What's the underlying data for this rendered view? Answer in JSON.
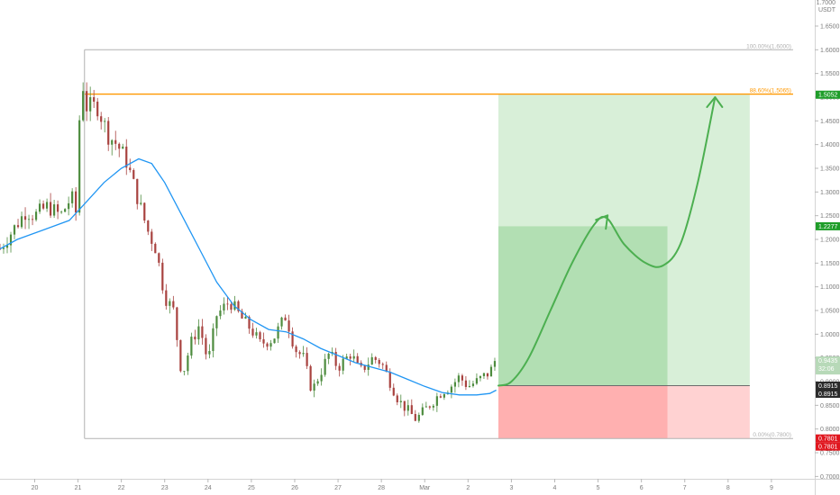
{
  "chart_data": {
    "type": "candlestick",
    "title": "",
    "xlabel": "",
    "ylabel": "",
    "currency_label": [
      "1.7000",
      "USDT"
    ],
    "x_ticks": [
      {
        "label": "20",
        "day": 20
      },
      {
        "label": "21",
        "day": 21
      },
      {
        "label": "22",
        "day": 22
      },
      {
        "label": "23",
        "day": 23
      },
      {
        "label": "24",
        "day": 24
      },
      {
        "label": "25",
        "day": 25
      },
      {
        "label": "26",
        "day": 26
      },
      {
        "label": "27",
        "day": 27
      },
      {
        "label": "28",
        "day": 28
      },
      {
        "label": "Mar",
        "day": 29
      },
      {
        "label": "2",
        "day": 30
      },
      {
        "label": "3",
        "day": 31
      },
      {
        "label": "4",
        "day": 32
      },
      {
        "label": "5",
        "day": 33
      },
      {
        "label": "6",
        "day": 34
      },
      {
        "label": "7",
        "day": 35
      },
      {
        "label": "8",
        "day": 36
      },
      {
        "label": "9",
        "day": 37
      }
    ],
    "y_ticks": [
      "1.6500",
      "1.6000",
      "1.5500",
      "1.5000",
      "1.4500",
      "1.4000",
      "1.3500",
      "1.3000",
      "1.2500",
      "1.2000",
      "1.1500",
      "1.1000",
      "1.0500",
      "1.0000",
      "0.9500",
      "0.9000",
      "0.8500",
      "0.8000",
      "0.7500",
      "0.7000"
    ],
    "ylim": [
      0.695,
      1.705
    ],
    "xlim": [
      19.2,
      38.0
    ],
    "price_points": [
      [
        19.2,
        1.18
      ],
      [
        19.5,
        1.22
      ],
      [
        19.8,
        1.26
      ],
      [
        20.0,
        1.25
      ],
      [
        20.3,
        1.27
      ],
      [
        20.6,
        1.25
      ],
      [
        20.85,
        1.29
      ],
      [
        21.0,
        1.24
      ],
      [
        21.05,
        1.56
      ],
      [
        21.2,
        1.48
      ],
      [
        21.45,
        1.48
      ],
      [
        21.7,
        1.42
      ],
      [
        21.9,
        1.4
      ],
      [
        22.1,
        1.37
      ],
      [
        22.4,
        1.28
      ],
      [
        22.6,
        1.22
      ],
      [
        22.8,
        1.18
      ],
      [
        23.0,
        1.08
      ],
      [
        23.2,
        1.05
      ],
      [
        23.4,
        0.91
      ],
      [
        23.6,
        0.98
      ],
      [
        23.8,
        1.02
      ],
      [
        24.0,
        0.94
      ],
      [
        24.2,
        1.04
      ],
      [
        24.5,
        1.07
      ],
      [
        24.8,
        1.03
      ],
      [
        25.0,
        1.01
      ],
      [
        25.2,
        0.98
      ],
      [
        25.5,
        0.99
      ],
      [
        25.8,
        1.04
      ],
      [
        26.0,
        0.97
      ],
      [
        26.2,
        0.95
      ],
      [
        26.4,
        0.88
      ],
      [
        26.6,
        0.92
      ],
      [
        26.8,
        0.96
      ],
      [
        27.0,
        0.93
      ],
      [
        27.3,
        0.96
      ],
      [
        27.5,
        0.92
      ],
      [
        27.8,
        0.95
      ],
      [
        28.0,
        0.94
      ],
      [
        28.2,
        0.9
      ],
      [
        28.4,
        0.86
      ],
      [
        28.6,
        0.84
      ],
      [
        28.8,
        0.82
      ],
      [
        29.0,
        0.84
      ],
      [
        29.2,
        0.86
      ],
      [
        29.4,
        0.88
      ],
      [
        29.6,
        0.89
      ],
      [
        29.8,
        0.91
      ],
      [
        30.0,
        0.89
      ],
      [
        30.2,
        0.9
      ],
      [
        30.5,
        0.92
      ],
      [
        30.65,
        0.9435
      ]
    ],
    "moving_average": [
      [
        19.2,
        1.18
      ],
      [
        19.6,
        1.2
      ],
      [
        20.2,
        1.22
      ],
      [
        20.8,
        1.24
      ],
      [
        21.2,
        1.28
      ],
      [
        21.6,
        1.32
      ],
      [
        22.0,
        1.35
      ],
      [
        22.4,
        1.37
      ],
      [
        22.7,
        1.36
      ],
      [
        23.0,
        1.32
      ],
      [
        23.4,
        1.25
      ],
      [
        23.8,
        1.18
      ],
      [
        24.2,
        1.11
      ],
      [
        24.6,
        1.06
      ],
      [
        25.0,
        1.03
      ],
      [
        25.4,
        1.01
      ],
      [
        25.8,
        1.005
      ],
      [
        26.2,
        0.99
      ],
      [
        26.6,
        0.97
      ],
      [
        27.0,
        0.955
      ],
      [
        27.4,
        0.94
      ],
      [
        27.8,
        0.93
      ],
      [
        28.2,
        0.92
      ],
      [
        28.6,
        0.905
      ],
      [
        29.0,
        0.89
      ],
      [
        29.4,
        0.877
      ],
      [
        29.8,
        0.872
      ],
      [
        30.2,
        0.872
      ],
      [
        30.5,
        0.875
      ],
      [
        30.65,
        0.882
      ]
    ],
    "fib_levels": [
      {
        "label": "100.00%(1.6000)",
        "price": 1.6,
        "x_start": 21.15,
        "x_end": 37.5,
        "color": "#b2b2b2"
      },
      {
        "label": "88.60%(1.5065)",
        "price": 1.5065,
        "x_start": 21.15,
        "x_end": 37.5,
        "color": "#ff9800"
      },
      {
        "label": "0.00%(0.7800)",
        "price": 0.78,
        "x_start": 21.15,
        "x_end": 37.5,
        "color": "#b2b2b2"
      }
    ],
    "position": {
      "entry": 0.8915,
      "stop": 0.7801,
      "target1": 1.2277,
      "target2": 1.5052,
      "x_start": 30.7,
      "x_mid": 34.6,
      "x_end": 36.5
    },
    "projection_path": [
      [
        30.7,
        0.8915
      ],
      [
        31.0,
        0.9
      ],
      [
        31.4,
        0.95
      ],
      [
        31.9,
        1.05
      ],
      [
        32.4,
        1.15
      ],
      [
        32.9,
        1.23
      ],
      [
        33.2,
        1.245
      ],
      [
        33.6,
        1.19
      ],
      [
        34.1,
        1.15
      ],
      [
        34.5,
        1.145
      ],
      [
        34.9,
        1.19
      ],
      [
        35.3,
        1.32
      ],
      [
        35.7,
        1.5
      ]
    ],
    "price_tags": [
      {
        "label": "1.5052",
        "price": 1.5052,
        "color": "#1f9d29"
      },
      {
        "label": "1.2277",
        "price": 1.2277,
        "color": "#1f9d29"
      },
      {
        "label": "0.9435",
        "sublabel": "32:06",
        "price": 0.9435,
        "color": "#b7d9b8"
      },
      {
        "label": "0.8915",
        "price": 0.8915,
        "color": "#2b2b2b",
        "stack": 2
      },
      {
        "label": "0.7801",
        "price": 0.7801,
        "color": "#e0171f",
        "stack": 2
      }
    ]
  }
}
